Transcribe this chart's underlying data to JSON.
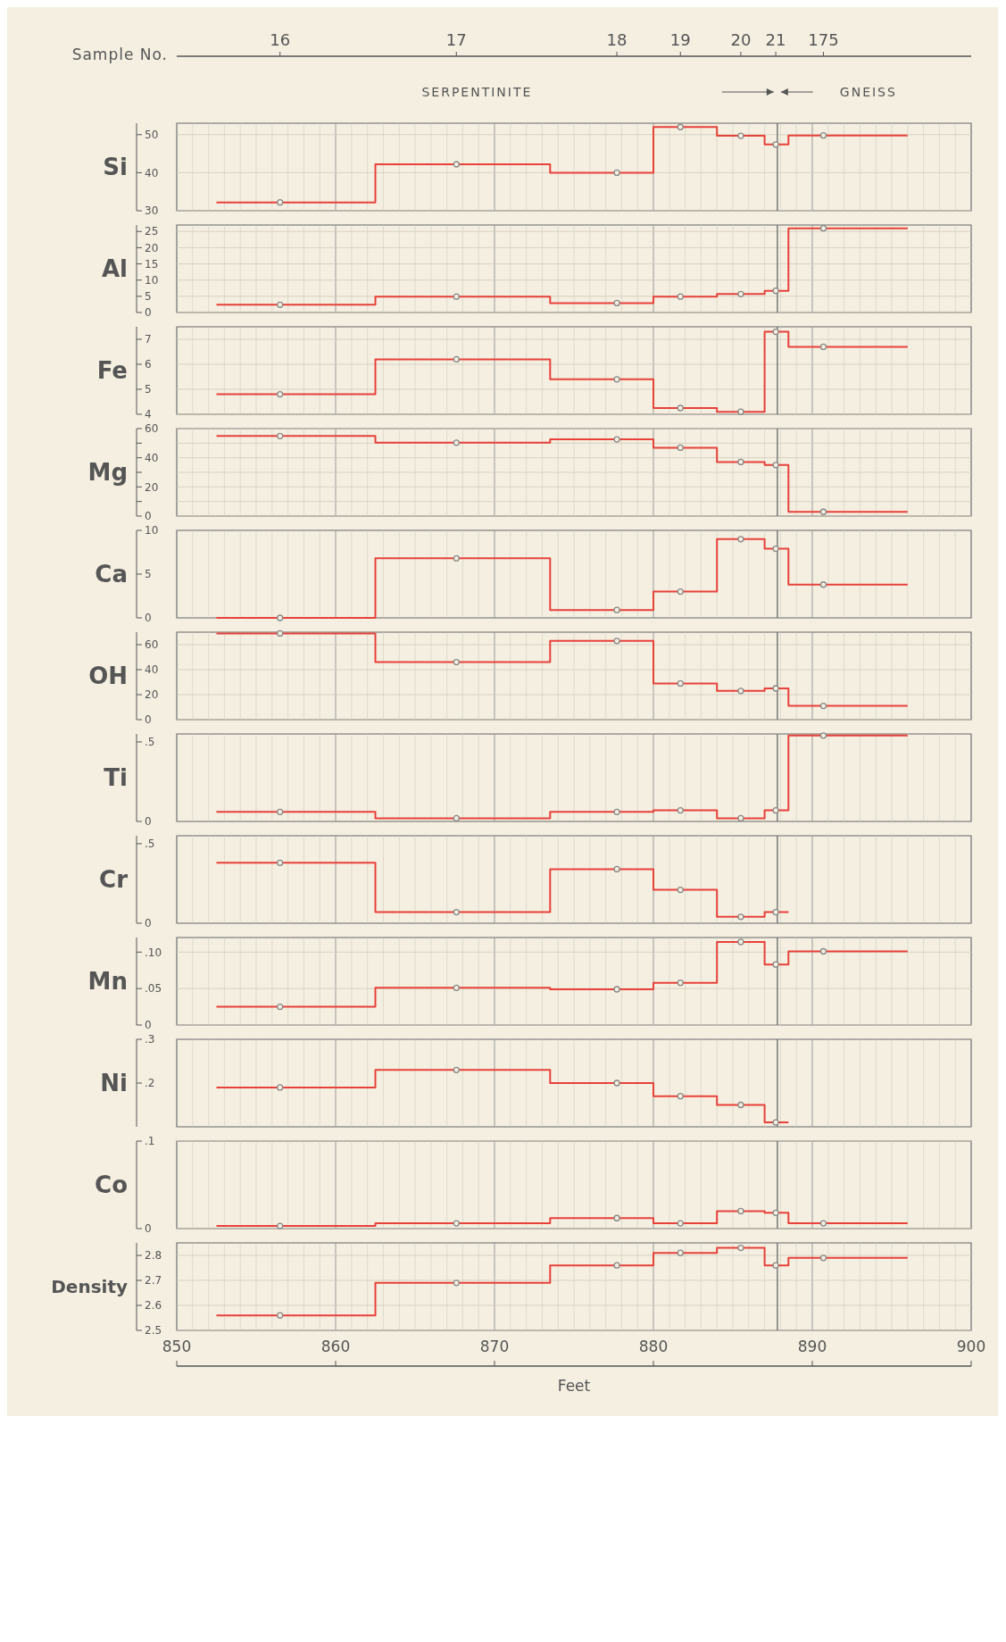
{
  "chart_data": [
    {
      "type": "step",
      "ylabel": "Si",
      "xlim": [
        850,
        900
      ],
      "ylim": [
        30,
        53
      ],
      "yticks": [
        30,
        40,
        50
      ],
      "x2label": "Sample No.",
      "annotations": [
        "SERPENTINITE",
        "GNEISS",
        {
          "text": "16",
          "x": 856.5
        },
        {
          "text": "17",
          "x": 867.6
        },
        {
          "text": "18",
          "x": 877.7
        },
        {
          "text": "19",
          "x": 881.7
        },
        {
          "text": "20",
          "x": 885.5
        },
        {
          "text": "21",
          "x": 887.7
        },
        {
          "text": "175",
          "x": 890.7
        }
      ],
      "ref_lines": [
        {
          "axis": "x",
          "value": 887.8,
          "color": "#777777"
        }
      ],
      "grid": true,
      "tick_labels": "y",
      "series": [
        {
          "type": "step",
          "color": "#e8413a",
          "x": [
            852.5,
            862.5,
            873.5,
            880,
            884,
            887,
            888.5,
            896
          ],
          "values": [
            32.2,
            42.2,
            40.0,
            52,
            49.7,
            47.4,
            49.8,
            49.8
          ]
        },
        {
          "type": "scatter",
          "marker": "circle",
          "color": "#888888",
          "x": [
            856.5,
            867.6,
            877.7,
            881.7,
            885.5,
            887.7,
            890.7
          ],
          "values": [
            32.2,
            42.2,
            40.0,
            52,
            49.7,
            47.4,
            49.8
          ]
        }
      ]
    },
    {
      "type": "step",
      "ylabel": "Al",
      "xlim": [
        850,
        900
      ],
      "ylim": [
        0,
        27
      ],
      "yticks": [
        0,
        5,
        10,
        15,
        20,
        25
      ],
      "ref_lines": [
        {
          "axis": "x",
          "value": 887.8,
          "color": "#777777"
        }
      ],
      "grid": true,
      "tick_labels": "y",
      "series": [
        {
          "type": "step",
          "color": "#e8413a",
          "x": [
            852.5,
            862.5,
            873.5,
            880,
            884,
            887,
            888.5,
            896
          ],
          "values": [
            2.4,
            4.9,
            2.9,
            4.9,
            5.7,
            6.7,
            26,
            26
          ]
        },
        {
          "type": "scatter",
          "marker": "circle",
          "color": "#888888",
          "x": [
            856.5,
            867.6,
            877.7,
            881.7,
            885.5,
            887.7,
            890.7
          ],
          "values": [
            2.4,
            4.9,
            2.9,
            4.9,
            5.7,
            6.7,
            26
          ]
        }
      ]
    },
    {
      "type": "step",
      "ylabel": "Fe",
      "xlim": [
        850,
        900
      ],
      "ylim": [
        4,
        7.5
      ],
      "yticks": [
        4,
        5,
        6,
        7
      ],
      "ref_lines": [
        {
          "axis": "x",
          "value": 887.8,
          "color": "#777777"
        }
      ],
      "grid": true,
      "tick_labels": "y",
      "series": [
        {
          "type": "step",
          "color": "#e8413a",
          "x": [
            852.5,
            862.5,
            873.5,
            880,
            884,
            887,
            888.5,
            896
          ],
          "values": [
            4.8,
            6.2,
            5.4,
            4.25,
            4.1,
            7.3,
            6.7,
            6.7
          ]
        },
        {
          "type": "scatter",
          "marker": "circle",
          "color": "#888888",
          "x": [
            856.5,
            867.6,
            877.7,
            881.7,
            885.5,
            887.7,
            890.7
          ],
          "values": [
            4.8,
            6.2,
            5.4,
            4.25,
            4.1,
            7.3,
            6.7
          ]
        }
      ]
    },
    {
      "type": "step",
      "ylabel": "Mg",
      "xlim": [
        850,
        900
      ],
      "ylim": [
        0,
        60
      ],
      "yticks": [
        0,
        {
          "value": 10,
          "label": null
        },
        20,
        {
          "value": 30,
          "label": null
        },
        40,
        {
          "value": 50,
          "label": null
        },
        60
      ],
      "ref_lines": [
        {
          "axis": "x",
          "value": 887.8,
          "color": "#777777"
        }
      ],
      "grid": true,
      "tick_labels": "y",
      "series": [
        {
          "type": "step",
          "color": "#e8413a",
          "x": [
            852.5,
            862.5,
            873.5,
            880,
            884,
            887,
            888.5,
            896
          ],
          "values": [
            54.9,
            50.3,
            52.6,
            46.9,
            37.1,
            35,
            2.9,
            2.9
          ]
        },
        {
          "type": "scatter",
          "marker": "circle",
          "color": "#888888",
          "x": [
            856.5,
            867.6,
            877.7,
            881.7,
            885.5,
            887.7,
            890.7
          ],
          "values": [
            54.9,
            50.3,
            52.6,
            46.9,
            37.1,
            35,
            2.9
          ]
        }
      ]
    },
    {
      "type": "step",
      "ylabel": "Ca",
      "xlim": [
        850,
        900
      ],
      "ylim": [
        0,
        10
      ],
      "yticks": [
        0,
        5,
        10
      ],
      "ref_lines": [
        {
          "axis": "x",
          "value": 887.8,
          "color": "#777777"
        }
      ],
      "grid": "x",
      "tick_labels": "y",
      "series": [
        {
          "type": "step",
          "color": "#e8413a",
          "x": [
            852.5,
            862.5,
            873.5,
            880,
            884,
            887,
            888.5,
            896
          ],
          "values": [
            0,
            6.8,
            0.9,
            3.0,
            9.0,
            7.9,
            3.8,
            3.8
          ]
        },
        {
          "type": "scatter",
          "marker": "circle",
          "color": "#888888",
          "x": [
            856.5,
            867.6,
            877.7,
            881.7,
            885.5,
            887.7,
            890.7
          ],
          "values": [
            0,
            6.8,
            0.9,
            3.0,
            9.0,
            7.9,
            3.8
          ]
        }
      ]
    },
    {
      "type": "step",
      "ylabel": "OH",
      "xlim": [
        850,
        900
      ],
      "ylim": [
        0,
        70
      ],
      "yticks": [
        0,
        20,
        40,
        60
      ],
      "ref_lines": [
        {
          "axis": "x",
          "value": 887.8,
          "color": "#777777"
        }
      ],
      "grid": true,
      "tick_labels": "y",
      "series": [
        {
          "type": "step",
          "color": "#e8413a",
          "x": [
            852.5,
            862.5,
            873.5,
            880,
            884,
            887,
            888.5,
            896
          ],
          "values": [
            69,
            46,
            63,
            29,
            23,
            25,
            11,
            11
          ]
        },
        {
          "type": "scatter",
          "marker": "circle",
          "color": "#888888",
          "x": [
            856.5,
            867.6,
            877.7,
            881.7,
            885.5,
            887.7,
            890.7
          ],
          "values": [
            69,
            46,
            63,
            29,
            23,
            25,
            11
          ]
        }
      ]
    },
    {
      "type": "step",
      "ylabel": "Ti",
      "xlim": [
        850,
        900
      ],
      "ylim": [
        0,
        0.55
      ],
      "yticks": [
        0,
        {
          "value": 0.5,
          "label": ".5"
        }
      ],
      "ref_lines": [
        {
          "axis": "x",
          "value": 887.8,
          "color": "#777777"
        }
      ],
      "grid": "x",
      "tick_labels": "y",
      "series": [
        {
          "type": "step",
          "color": "#e8413a",
          "x": [
            852.5,
            862.5,
            873.5,
            880,
            884,
            887,
            888.5,
            896
          ],
          "values": [
            0.06,
            0.02,
            0.06,
            0.07,
            0.02,
            0.07,
            0.54,
            0.54
          ]
        },
        {
          "type": "scatter",
          "marker": "circle",
          "color": "#888888",
          "x": [
            856.5,
            867.6,
            877.7,
            881.7,
            885.5,
            887.7,
            890.7
          ],
          "values": [
            0.06,
            0.02,
            0.06,
            0.07,
            0.02,
            0.07,
            0.54
          ]
        }
      ]
    },
    {
      "type": "step",
      "ylabel": "Cr",
      "xlim": [
        850,
        900
      ],
      "ylim": [
        0,
        0.55
      ],
      "yticks": [
        0,
        {
          "value": 0.5,
          "label": ".5"
        }
      ],
      "ref_lines": [
        {
          "axis": "x",
          "value": 887.8,
          "color": "#777777"
        }
      ],
      "grid": "x",
      "tick_labels": "y",
      "series": [
        {
          "type": "step",
          "color": "#e8413a",
          "x": [
            852.5,
            862.5,
            873.5,
            880,
            884,
            887,
            888.5
          ],
          "values": [
            0.38,
            0.07,
            0.34,
            0.21,
            0.04,
            0.07,
            0.07
          ]
        },
        {
          "type": "scatter",
          "marker": "circle",
          "color": "#888888",
          "x": [
            856.5,
            867.6,
            877.7,
            881.7,
            885.5,
            887.7
          ],
          "values": [
            0.38,
            0.07,
            0.34,
            0.21,
            0.04,
            0.07
          ]
        }
      ]
    },
    {
      "type": "step",
      "ylabel": "Mn",
      "xlim": [
        850,
        900
      ],
      "ylim": [
        0,
        0.12
      ],
      "yticks": [
        0,
        {
          "value": 0.05,
          "label": ".05"
        },
        {
          "value": 0.1,
          "label": ".10"
        }
      ],
      "ref_lines": [
        {
          "axis": "x",
          "value": 887.8,
          "color": "#777777"
        }
      ],
      "grid": true,
      "tick_labels": "y",
      "series": [
        {
          "type": "step",
          "color": "#e8413a",
          "x": [
            852.5,
            862.5,
            873.5,
            880,
            884,
            887,
            888.5,
            896
          ],
          "values": [
            0.025,
            0.051,
            0.049,
            0.058,
            0.114,
            0.083,
            0.101,
            0.101
          ]
        },
        {
          "type": "scatter",
          "marker": "circle",
          "color": "#888888",
          "x": [
            856.5,
            867.6,
            877.7,
            881.7,
            885.5,
            887.7,
            890.7
          ],
          "values": [
            0.025,
            0.051,
            0.049,
            0.058,
            0.114,
            0.083,
            0.101
          ]
        }
      ]
    },
    {
      "type": "step",
      "ylabel": "Ni",
      "xlim": [
        850,
        900
      ],
      "ylim": [
        0.1,
        0.3
      ],
      "yticks": [
        {
          "value": 0.2,
          "label": ".2"
        },
        {
          "value": 0.3,
          "label": ".3"
        }
      ],
      "ref_lines": [
        {
          "axis": "x",
          "value": 887.8,
          "color": "#777777"
        }
      ],
      "grid": "x",
      "tick_labels": "y",
      "series": [
        {
          "type": "step",
          "color": "#e8413a",
          "x": [
            852.5,
            862.5,
            873.5,
            880,
            884,
            887,
            888.5
          ],
          "values": [
            0.19,
            0.23,
            0.2,
            0.17,
            0.15,
            0.11,
            0.11
          ]
        },
        {
          "type": "scatter",
          "marker": "circle",
          "color": "#888888",
          "x": [
            856.5,
            867.6,
            877.7,
            881.7,
            885.5,
            887.7
          ],
          "values": [
            0.19,
            0.23,
            0.2,
            0.17,
            0.15,
            0.11
          ]
        }
      ]
    },
    {
      "type": "step",
      "ylabel": "Co",
      "xlim": [
        850,
        900
      ],
      "ylim": [
        0,
        0.1
      ],
      "yticks": [
        0,
        {
          "value": 0.1,
          "label": ".1"
        }
      ],
      "ref_lines": [
        {
          "axis": "x",
          "value": 887.8,
          "color": "#777777"
        }
      ],
      "grid": true,
      "tick_labels": "y",
      "series": [
        {
          "type": "step",
          "color": "#e8413a",
          "x": [
            852.5,
            862.5,
            873.5,
            880,
            884,
            887,
            888.5,
            896
          ],
          "values": [
            0.003,
            0.006,
            0.012,
            0.006,
            0.02,
            0.018,
            0.006,
            0.006
          ]
        },
        {
          "type": "scatter",
          "marker": "circle",
          "color": "#888888",
          "x": [
            856.5,
            867.6,
            877.7,
            881.7,
            885.5,
            887.7,
            890.7
          ],
          "values": [
            0.003,
            0.006,
            0.012,
            0.006,
            0.02,
            0.018,
            0.006
          ]
        }
      ]
    },
    {
      "type": "step",
      "ylabel": "Density",
      "xlabel": "Feet",
      "xlim": [
        850,
        900
      ],
      "xticks": [
        850,
        860,
        870,
        880,
        890,
        900
      ],
      "ylim": [
        2.5,
        2.85
      ],
      "yticks": [
        2.5,
        2.6,
        2.7,
        2.8
      ],
      "ref_lines": [
        {
          "axis": "x",
          "value": 887.8,
          "color": "#777777"
        }
      ],
      "grid": true,
      "series": [
        {
          "type": "step",
          "color": "#e8413a",
          "x": [
            852.5,
            862.5,
            873.5,
            880,
            884,
            887,
            888.5,
            896
          ],
          "values": [
            2.56,
            2.69,
            2.76,
            2.81,
            2.83,
            2.76,
            2.79,
            2.79
          ]
        },
        {
          "type": "scatter",
          "marker": "circle",
          "color": "#888888",
          "x": [
            856.5,
            867.6,
            877.7,
            881.7,
            885.5,
            887.7,
            890.7
          ],
          "values": [
            2.56,
            2.69,
            2.76,
            2.81,
            2.83,
            2.76,
            2.79
          ]
        }
      ]
    }
  ]
}
